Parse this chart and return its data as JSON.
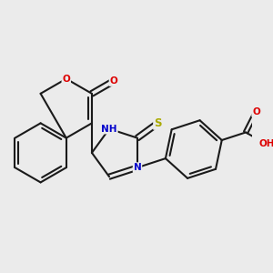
{
  "background_color": "#ebebeb",
  "bond_color": "#1a1a1a",
  "bond_width": 1.5,
  "atom_colors": {
    "N": "#0000cc",
    "O": "#dd0000",
    "S": "#aaaa00",
    "C": "#1a1a1a"
  },
  "font_size_small": 7.5,
  "font_size_med": 8.5,
  "fig_size": [
    3.0,
    3.0
  ],
  "dpi": 100,
  "BL": 1.0
}
